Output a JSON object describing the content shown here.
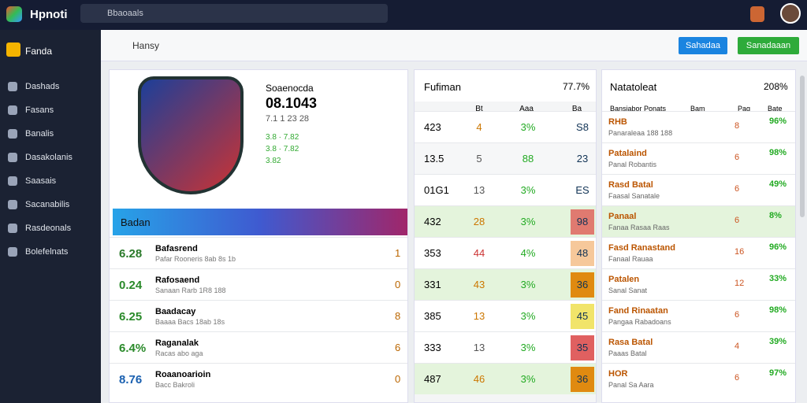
{
  "topbar": {
    "logo": "Hpnoti",
    "search": "Bbaoaals"
  },
  "sidebar": {
    "brand": "Fanda",
    "items": [
      "Dashads",
      "Fasans",
      "Banalis",
      "Dasakolanis",
      "Saasais",
      "Sacanabilis",
      "Rasdeonals",
      "Bolefelnats"
    ]
  },
  "subheader": {
    "search": "Hansy",
    "buttons": [
      "Sahadaa",
      "Sanadaaan"
    ]
  },
  "profile": {
    "label": "Soaenocda",
    "score": "08.1043",
    "meta": "7.1 1 23 28",
    "ratings": [
      "3.8 · 7.82",
      "3.8 · 7.82",
      "3.82"
    ],
    "banner": "Badan",
    "rows": [
      [
        "6.28",
        "Bafasrend",
        "Pafar Rooneris 8ab 8s 1b",
        "1"
      ],
      [
        "0.24",
        "Rafosaend",
        "Sanaan Rarb 1R8 188",
        "0"
      ],
      [
        "6.25",
        "Baadacay",
        "Baaaa Bacs 18ab 18s",
        "8"
      ],
      [
        "6.4%",
        "Raganalak",
        "Racas abo aga",
        "6"
      ],
      [
        "8.76",
        "Roaanoarioin",
        "Bacc Bakroli",
        "0"
      ]
    ]
  },
  "middle": {
    "title": "Fufiman",
    "stat": "77.7%",
    "headers": [
      "Bt",
      "Aaa",
      "Ba"
    ],
    "rows": [
      [
        "423",
        "4",
        "3%",
        "S8"
      ],
      [
        "13.5",
        "5",
        "88",
        "23"
      ],
      [
        "01G1",
        "13",
        "3%",
        "ES"
      ],
      [
        "432",
        "28",
        "3%",
        "98"
      ],
      [
        "353",
        "44",
        "4%",
        "48"
      ],
      [
        "331",
        "43",
        "3%",
        "36"
      ],
      [
        "385",
        "13",
        "3%",
        "45"
      ],
      [
        "333",
        "13",
        "3%",
        "35"
      ],
      [
        "487",
        "46",
        "3%",
        "36"
      ]
    ]
  },
  "right": {
    "title": "Natatoleat",
    "stat": "208%",
    "headers": [
      "Bansiabor Ponats",
      "Bam",
      "Pag",
      "Bate"
    ],
    "rows": [
      [
        "RHB",
        "Panaraleaa 188 188",
        "8",
        "96%"
      ],
      [
        "Patalaind",
        "Panal Robantis",
        "6",
        "98%"
      ],
      [
        "Rasd Batal",
        "Faasal Sanatale",
        "6",
        "49%"
      ],
      [
        "Panaal",
        "Fanaa Rasaa Raas",
        "6",
        "8%"
      ],
      [
        "Fasd Ranastand",
        "Fanaal Rauaa",
        "16",
        "96%"
      ],
      [
        "Patalen",
        "Sanal Sanat",
        "12",
        "33%"
      ],
      [
        "Fand Rinaatan",
        "Pangaa Rabadoans",
        "6",
        "98%"
      ],
      [
        "Rasa Batal",
        "Paaas Batal",
        "4",
        "39%"
      ],
      [
        "HOR",
        "Panal Sa Aara",
        "6",
        "97%"
      ]
    ]
  }
}
